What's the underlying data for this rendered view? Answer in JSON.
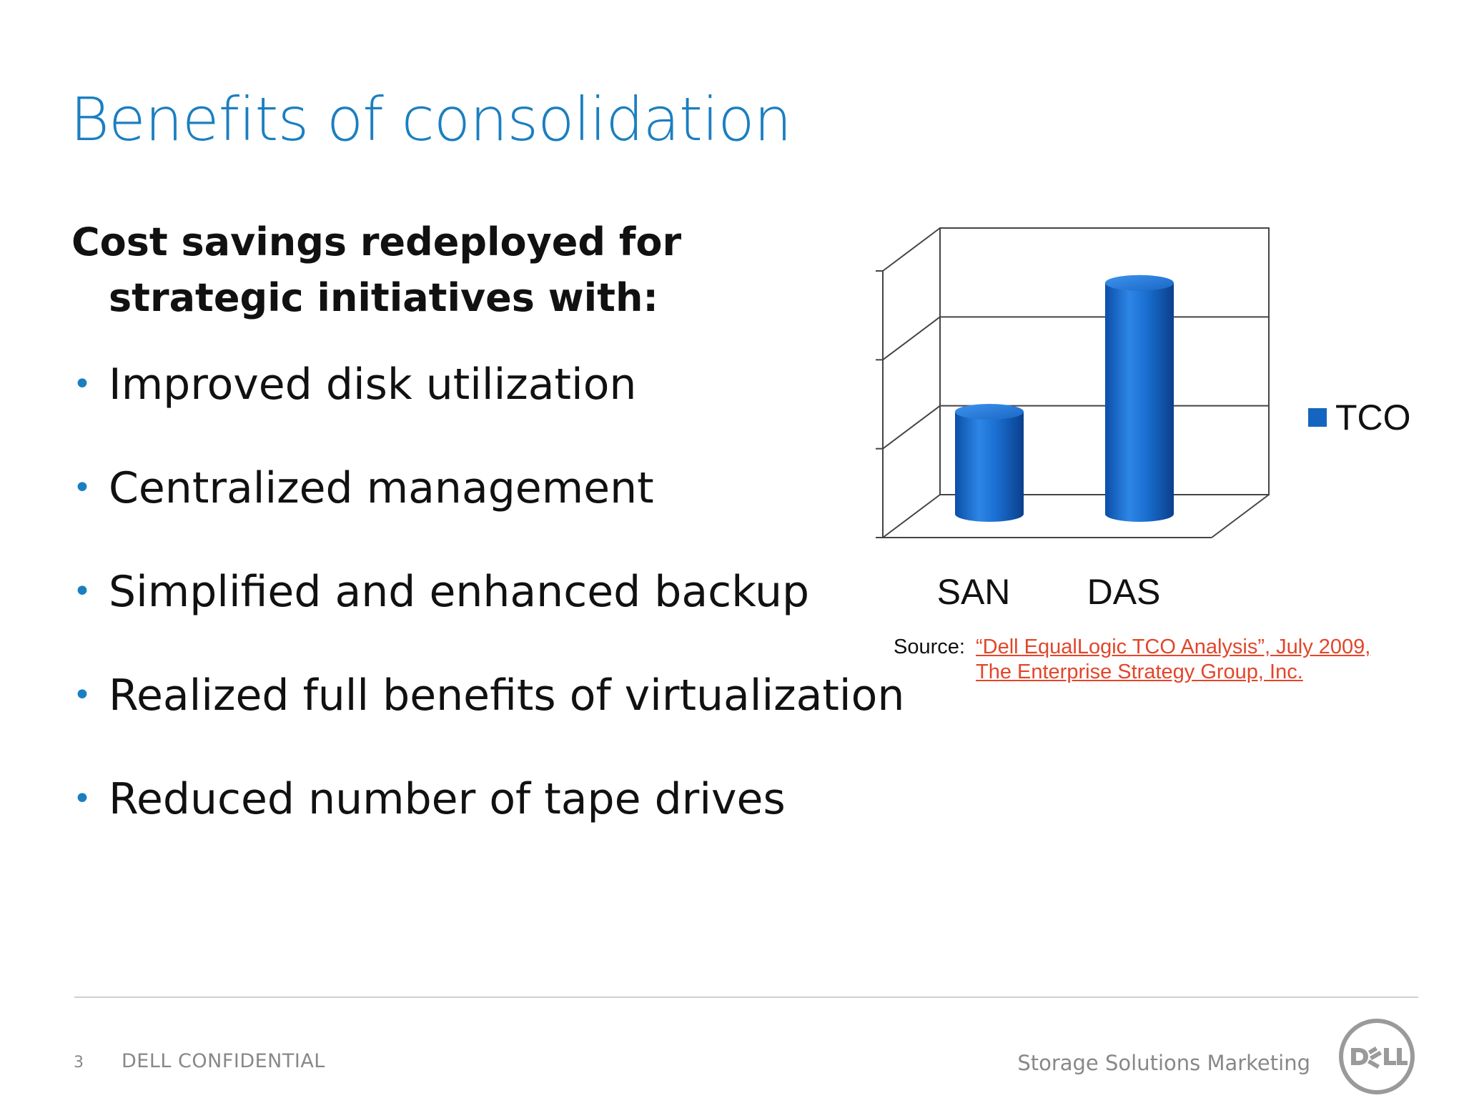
{
  "slide": {
    "title": "Benefits of consolidation",
    "intro_line1": "Cost savings redeployed for",
    "intro_line2": "strategic initiatives with:",
    "bullets": [
      "Improved disk utilization",
      "Centralized management",
      "Simplified and enhanced backup",
      "Realized full benefits of virtualization",
      "Reduced number of tape drives"
    ]
  },
  "chart_data": {
    "type": "bar",
    "style": "3d-cylinder",
    "categories": [
      "SAN",
      "DAS"
    ],
    "series": [
      {
        "name": "TCO",
        "values": [
          1.15,
          2.6
        ],
        "color": "#1565c0"
      }
    ],
    "ylim": [
      0,
      3
    ],
    "y_tick_labels_shown": false,
    "grid": true,
    "legend_position": "right"
  },
  "source": {
    "label": "Source:",
    "line1": "“Dell EqualLogic TCO Analysis”, July 2009,",
    "line2": "The Enterprise Strategy Group, Inc."
  },
  "footer": {
    "page_number": "3",
    "confidential": "DELL CONFIDENTIAL",
    "department": "Storage Solutions Marketing",
    "logo_icon": "dell-logo-icon"
  },
  "colors": {
    "title_blue": "#1a7fc1",
    "bar_blue": "#1565c0",
    "link_red": "#e2462b",
    "footer_gray": "#888888"
  }
}
